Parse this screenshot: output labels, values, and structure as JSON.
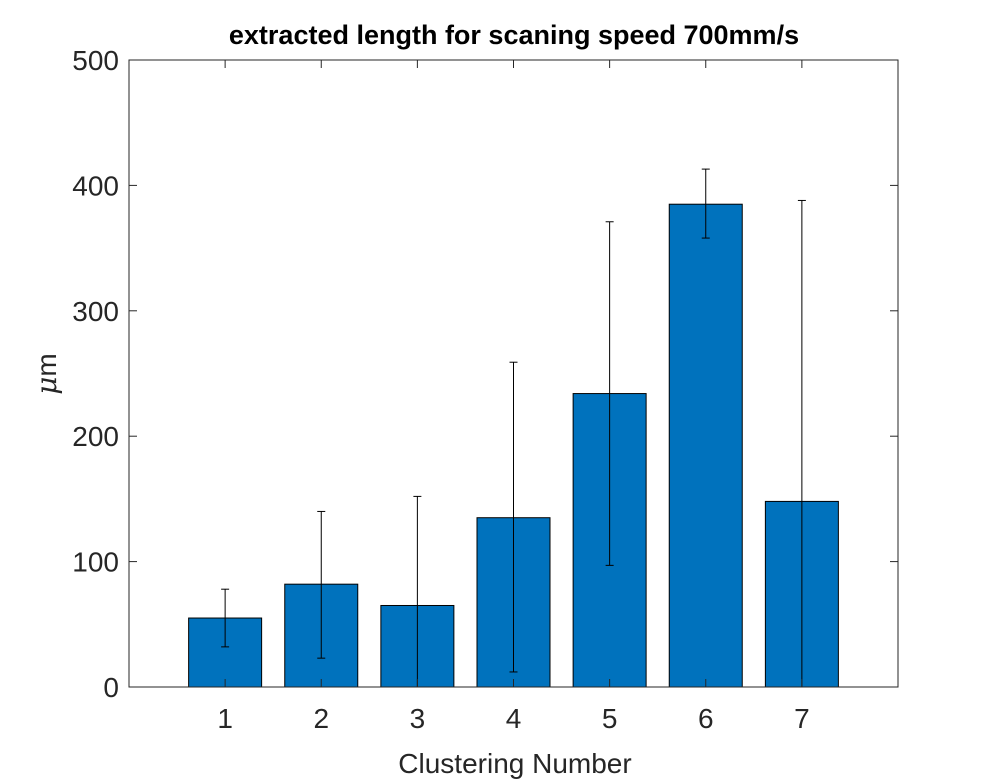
{
  "chart_data": {
    "type": "bar",
    "title": "extracted length for scaning speed 700mm/s",
    "xlabel": "Clustering Number",
    "ylabel_symbol": "μ",
    "ylabel_unit": "m",
    "categories": [
      "1",
      "2",
      "3",
      "4",
      "5",
      "6",
      "7"
    ],
    "values": [
      55,
      82,
      65,
      135,
      234,
      385,
      148
    ],
    "error_low": [
      32,
      23,
      0,
      12,
      97,
      358,
      0
    ],
    "error_high": [
      78,
      140,
      152,
      259,
      371,
      413,
      388
    ],
    "ylim": [
      0,
      500
    ],
    "yticks": [
      0,
      100,
      200,
      300,
      400,
      500
    ],
    "xlim": [
      0,
      8
    ],
    "bar_color": "#0072BD",
    "grid": false,
    "box": true
  }
}
